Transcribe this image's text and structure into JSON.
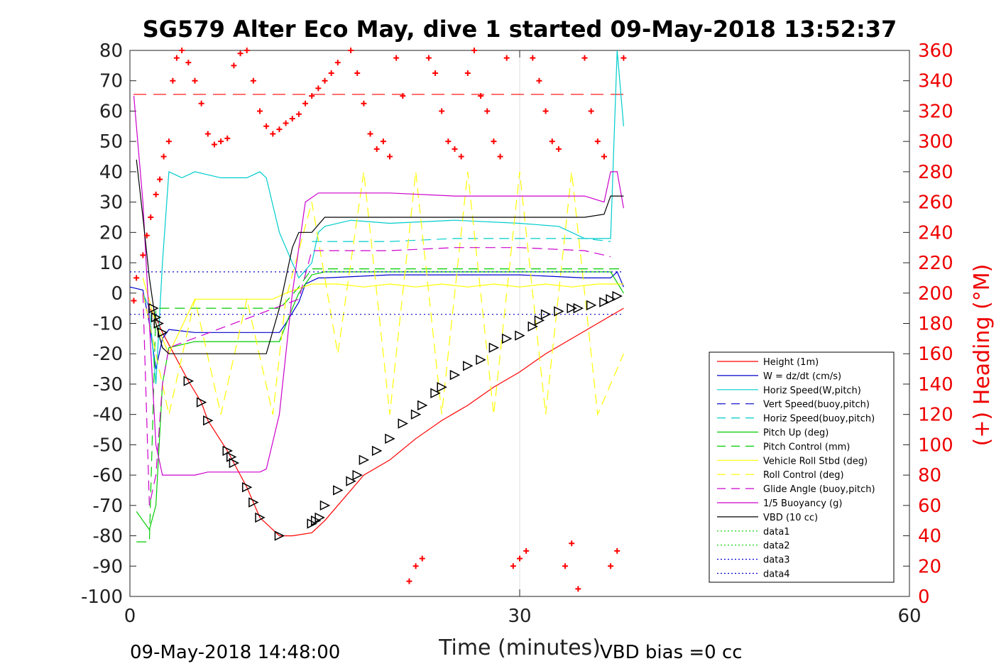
{
  "chart_data": {
    "type": "line",
    "title": "SG579 Alter Eco May, dive 1 started 09-May-2018 13:52:37",
    "xlabel": "Time (minutes)",
    "ylabel_left": "",
    "ylabel_right": "(+) Heading (°M)",
    "xlim": [
      0,
      60
    ],
    "ylim_left": [
      -100,
      80
    ],
    "ylim_right": [
      0,
      360
    ],
    "x_ticks": [
      "0",
      "30",
      "60"
    ],
    "y_ticks_left": [
      "80",
      "70",
      "60",
      "50",
      "40",
      "30",
      "20",
      "10",
      "0",
      "-10",
      "-20",
      "-30",
      "-40",
      "-50",
      "-60",
      "-70",
      "-80",
      "-90",
      "-100"
    ],
    "y_ticks_right": [
      "360",
      "340",
      "320",
      "300",
      "280",
      "260",
      "240",
      "220",
      "200",
      "180",
      "160",
      "140",
      "120",
      "100",
      "80",
      "60",
      "40",
      "20",
      "0"
    ],
    "grid": "x-only",
    "legend_position": "right-lower",
    "footer_left": "09-May-2018 14:48:00",
    "footer_right": "VBD bias =0 cc",
    "series": [
      {
        "name": "Height (1m)",
        "color": "#ff0000",
        "style": "solid",
        "x": [
          1.5,
          2.0,
          2.5,
          4.5,
          5.5,
          6.0,
          7.5,
          8.0,
          9.0,
          9.5,
          10.0,
          11.5,
          12.5,
          14.0,
          15.0,
          16.0,
          17.0,
          18.0,
          20.0,
          22.0,
          24.0,
          26.0,
          28.0,
          30.0,
          32.0,
          34.0,
          36.0,
          38.0
        ],
        "y": [
          -5,
          -8,
          -13,
          -29,
          -36,
          -42,
          -52,
          -56,
          -64,
          -69,
          -74,
          -80,
          -80,
          -79,
          -75,
          -70,
          -65,
          -60,
          -55,
          -48,
          -42,
          -37,
          -31,
          -26,
          -20,
          -15,
          -10,
          -5
        ]
      },
      {
        "name": "W = dz/dt (cm/s)",
        "color": "#0000cc",
        "style": "solid",
        "x": [
          0,
          1.0,
          1.5,
          2.0,
          2.5,
          3.0,
          5.0,
          8.0,
          10.0,
          11.5,
          12.0,
          13.0,
          13.5,
          14.5,
          15.0,
          20.0,
          25.0,
          30.0,
          35.0,
          37.0,
          37.5,
          38.0
        ],
        "y": [
          2,
          1,
          -10,
          -25,
          -15,
          -12,
          -13,
          -13,
          -13,
          -13,
          -10,
          -3,
          3,
          5,
          5,
          6,
          6,
          6,
          5,
          5,
          7,
          2
        ]
      },
      {
        "name": "Horiz Speed(W,pitch)",
        "color": "#00cccc",
        "style": "solid",
        "x": [
          1.0,
          1.5,
          2.0,
          2.5,
          3.0,
          4.0,
          5.0,
          7.0,
          9.0,
          10.0,
          10.5,
          11.5,
          12.5,
          13.0,
          14.0,
          14.5,
          15.0,
          17.0,
          20.0,
          25.0,
          30.0,
          33.0,
          34.0,
          35.0,
          36.0,
          37.0,
          37.5,
          38.0
        ],
        "y": [
          0,
          -5,
          -30,
          10,
          40,
          38,
          40,
          38,
          38,
          40,
          38,
          20,
          10,
          5,
          10,
          20,
          22,
          24,
          23,
          24,
          23,
          22,
          20,
          18,
          18,
          18,
          80,
          55
        ]
      },
      {
        "name": "Vert Speed(buoy,pitch)",
        "color": "#0000cc",
        "style": "dashed",
        "x": [],
        "y": []
      },
      {
        "name": "Horiz Speed(buoy,pitch)",
        "color": "#00cccc",
        "style": "dashed",
        "x": [
          14.0,
          20.0,
          25.0,
          30.0,
          35.0,
          37.0
        ],
        "y": [
          17,
          17,
          18,
          18,
          18,
          17
        ]
      },
      {
        "name": "Pitch Up (deg)",
        "color": "#00cc00",
        "style": "solid",
        "x": [
          0.5,
          1.0,
          1.5,
          2.0,
          2.5,
          3.0,
          5.0,
          8.0,
          10.0,
          11.5,
          12.5,
          13.0,
          14.0,
          15.0,
          20.0,
          25.0,
          30.0,
          35.0,
          37.0,
          38.0
        ],
        "y": [
          -72,
          -75,
          -78,
          -70,
          -30,
          -18,
          -16,
          -16,
          -16,
          -16,
          -5,
          0,
          6,
          7,
          7,
          7,
          7,
          7,
          7,
          0
        ]
      },
      {
        "name": "Pitch Control (mm)",
        "color": "#00cc00",
        "style": "dashed",
        "x": [
          0.5,
          1.5,
          2.0,
          2.5,
          5.0,
          10.0,
          11.5,
          12.0,
          13.0,
          14.0,
          20.0,
          30.0,
          38.0
        ],
        "y": [
          -82,
          -82,
          -5,
          -5,
          -5,
          -5,
          -5,
          -3,
          2,
          8,
          8,
          8,
          8
        ]
      },
      {
        "name": "Vehicle Roll Stbd (deg)",
        "color": "#ffff00",
        "style": "solid",
        "x": [
          1.0,
          2.0,
          3.0,
          5.0,
          7.0,
          9.0,
          11.0,
          12.0,
          14.0,
          16.0,
          18.0,
          20.0,
          22.0,
          24.0,
          26.0,
          28.0,
          30.0,
          32.0,
          34.0,
          36.0,
          38.0
        ],
        "y": [
          5,
          -10,
          -20,
          -2,
          -2,
          -2,
          -2,
          0,
          3,
          3,
          2,
          3,
          2,
          3,
          2,
          3,
          2,
          3,
          2,
          3,
          3
        ]
      },
      {
        "name": "Roll Control (deg)",
        "color": "#ffff00",
        "style": "dashed",
        "x": [
          1.0,
          3.0,
          5.0,
          7.0,
          9.0,
          11.0,
          12.0,
          14.0,
          16.0,
          18.0,
          20.0,
          22.0,
          24.0,
          26.0,
          28.0,
          30.0,
          32.0,
          34.0,
          36.0,
          38.0
        ],
        "y": [
          0,
          -40,
          -2,
          -40,
          -2,
          -40,
          -2,
          30,
          -20,
          40,
          -40,
          40,
          -40,
          40,
          -40,
          40,
          -40,
          40,
          -40,
          -20
        ]
      },
      {
        "name": "Glide Angle (buoy,pitch)",
        "color": "#cc00cc",
        "style": "dashed",
        "x": [
          1.0,
          1.5,
          2.0,
          2.5,
          3.0,
          13.0,
          14.0,
          20.0,
          25.0,
          30.0,
          35.0,
          37.0
        ],
        "y": [
          0,
          -70,
          -60,
          -30,
          -18,
          -2,
          14,
          14,
          15,
          15,
          14,
          12
        ]
      },
      {
        "name": "1/5 Buoyancy (g)",
        "color": "#cc00cc",
        "style": "solid",
        "x": [
          0.3,
          1.0,
          1.5,
          2.0,
          2.5,
          3.0,
          5.0,
          6.0,
          8.0,
          10.0,
          10.5,
          11.5,
          12.5,
          13.5,
          14.5,
          20.0,
          25.0,
          30.0,
          35.0,
          36.5,
          37.0,
          37.5,
          38.0
        ],
        "y": [
          65,
          30,
          -10,
          -50,
          -60,
          -60,
          -60,
          -59,
          -59,
          -59,
          -58,
          -40,
          0,
          30,
          33,
          33,
          32,
          32,
          32,
          30,
          40,
          40,
          28
        ]
      },
      {
        "name": "VBD (10 cc)",
        "color": "#000000",
        "style": "solid",
        "x": [
          0.5,
          1.0,
          1.5,
          2.0,
          2.5,
          3.0,
          5.0,
          8.0,
          10.0,
          10.5,
          11.5,
          12.5,
          13.0,
          14.0,
          15.0,
          20.0,
          25.0,
          30.0,
          35.0,
          36.5,
          37.0,
          38.0
        ],
        "y": [
          44,
          25,
          5,
          -10,
          -18,
          -20,
          -20,
          -20,
          -20,
          -20,
          -5,
          15,
          20,
          20,
          25,
          25,
          25,
          25,
          25,
          26,
          32,
          32
        ]
      },
      {
        "name": "data1",
        "color": "#00cc00",
        "style": "dotted",
        "x": [],
        "y": []
      },
      {
        "name": "data2",
        "color": "#00cc00",
        "style": "dotted",
        "x": [],
        "y": []
      },
      {
        "name": "data3",
        "color": "#0000cc",
        "style": "dotted",
        "x": [
          0,
          38
        ],
        "y": [
          7,
          7
        ]
      },
      {
        "name": "data4",
        "color": "#0000cc",
        "style": "dotted",
        "x": [
          0,
          38
        ],
        "y": [
          -7,
          -7
        ]
      }
    ],
    "heading_reference": {
      "color": "#ff0000",
      "style": "dashed",
      "value": 331
    },
    "heading_points": {
      "color": "#ff0000",
      "marker": "+",
      "x": [
        0.3,
        0.5,
        1.0,
        1.3,
        1.6,
        2.0,
        2.3,
        2.6,
        3.0,
        3.3,
        3.6,
        4.0,
        4.5,
        5.0,
        5.5,
        6.0,
        6.5,
        7.0,
        7.5,
        8.0,
        8.5,
        9.0,
        9.5,
        10.0,
        10.5,
        11.0,
        11.5,
        12.0,
        12.5,
        13.0,
        13.5,
        14.0,
        14.5,
        15.0,
        15.5,
        16.0,
        17.0,
        17.5,
        18.0,
        18.5,
        19.0,
        19.5,
        20.0,
        20.5,
        21.0,
        21.5,
        22.0,
        22.5,
        23.0,
        23.5,
        24.0,
        24.5,
        25.0,
        25.5,
        26.0,
        26.5,
        27.0,
        27.5,
        28.0,
        28.5,
        29.0,
        29.5,
        30.0,
        30.5,
        31.0,
        31.5,
        32.0,
        32.5,
        33.0,
        33.5,
        34.0,
        34.5,
        35.0,
        35.5,
        36.0,
        36.5,
        37.0,
        37.5,
        38.0
      ],
      "y": [
        195,
        210,
        225,
        238,
        250,
        265,
        275,
        290,
        300,
        340,
        355,
        360,
        352,
        340,
        325,
        305,
        298,
        300,
        302,
        350,
        358,
        360,
        340,
        320,
        310,
        305,
        308,
        312,
        315,
        318,
        325,
        330,
        335,
        340,
        345,
        352,
        360,
        345,
        325,
        305,
        295,
        300,
        290,
        355,
        330,
        10,
        20,
        25,
        355,
        345,
        320,
        300,
        295,
        290,
        345,
        360,
        330,
        320,
        300,
        290,
        355,
        20,
        25,
        30,
        355,
        340,
        320,
        300,
        295,
        20,
        35,
        5,
        355,
        320,
        300,
        290,
        20,
        30,
        355
      ]
    },
    "direction_markers": {
      "color": "#000000",
      "x": [
        1.8,
        2.0,
        2.2,
        2.5,
        4.5,
        5.5,
        6.0,
        7.5,
        7.8,
        8.0,
        9.0,
        9.5,
        10.0,
        11.5,
        14.0,
        14.3,
        14.6,
        15.0,
        16.0,
        17.0,
        17.5,
        18.0,
        19.0,
        20.0,
        21.0,
        22.0,
        22.5,
        23.5,
        24.0,
        25.0,
        26.0,
        27.0,
        28.0,
        29.0,
        30.0,
        31.0,
        31.5,
        32.0,
        33.0,
        34.0,
        34.5,
        35.5,
        36.5,
        37.0,
        37.5
      ],
      "y": [
        -5,
        -8,
        -10,
        -13,
        -29,
        -36,
        -42,
        -52,
        -54,
        -56,
        -64,
        -69,
        -74,
        -80,
        -76,
        -75,
        -74,
        -70,
        -65,
        -62,
        -60,
        -55,
        -52,
        -48,
        -43,
        -40,
        -37,
        -33,
        -31,
        -27,
        -24,
        -22,
        -18,
        -15,
        -14,
        -11,
        -9,
        -7,
        -6,
        -5,
        -5,
        -4,
        -3,
        -2,
        -1
      ]
    }
  }
}
